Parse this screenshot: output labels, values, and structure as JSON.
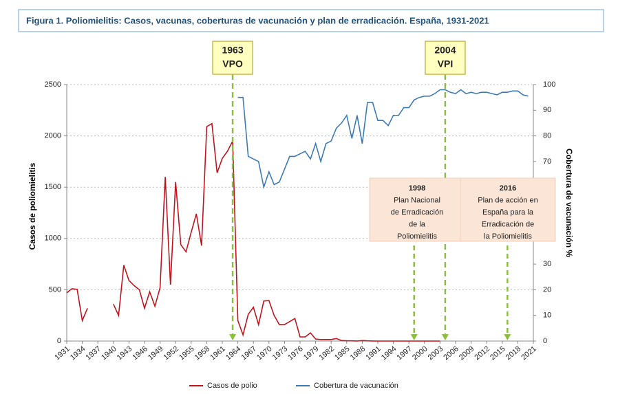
{
  "chart_data": {
    "type": "line",
    "title": "Figura 1. Poliomielitis: Casos, vacunas, coberturas de vacunación y plan de erradicación. España, 1931-2021",
    "y_label": "Casos de poliomielitis",
    "y2_label": "Cobertura de vacunación %",
    "x": [
      1931,
      1932,
      1933,
      1934,
      1935,
      1936,
      1937,
      1938,
      1939,
      1940,
      1941,
      1942,
      1943,
      1944,
      1945,
      1946,
      1947,
      1948,
      1949,
      1950,
      1951,
      1952,
      1953,
      1954,
      1955,
      1956,
      1957,
      1958,
      1959,
      1960,
      1961,
      1962,
      1963,
      1964,
      1965,
      1966,
      1967,
      1968,
      1969,
      1970,
      1971,
      1972,
      1973,
      1974,
      1975,
      1976,
      1977,
      1978,
      1979,
      1980,
      1981,
      1982,
      1983,
      1984,
      1985,
      1986,
      1987,
      1988,
      1989,
      1990,
      1991,
      1992,
      1993,
      1994,
      1995,
      1996,
      1997,
      1998,
      1999,
      2000,
      2001,
      2002,
      2003,
      2004,
      2005,
      2006,
      2007,
      2008,
      2009,
      2010,
      2011,
      2012,
      2013,
      2014,
      2015,
      2016,
      2017,
      2018,
      2019,
      2020,
      2021
    ],
    "xlim": [
      1931,
      2021
    ],
    "xticks": [
      1931,
      1934,
      1937,
      1940,
      1943,
      1946,
      1949,
      1952,
      1955,
      1958,
      1961,
      1964,
      1967,
      1970,
      1973,
      1976,
      1979,
      1982,
      1985,
      1988,
      1991,
      1994,
      1997,
      2000,
      2003,
      2006,
      2009,
      2012,
      2015,
      2018,
      2021
    ],
    "ylim": [
      0,
      2500
    ],
    "yticks": [
      0,
      500,
      1000,
      1500,
      2000,
      2500
    ],
    "y2lim": [
      0,
      100
    ],
    "y2ticks": [
      0,
      10,
      20,
      30,
      40,
      50,
      60,
      70,
      80,
      90,
      100
    ],
    "grid": true,
    "series": [
      {
        "name": "Casos de polio",
        "color": "#c0141c",
        "values": [
          470,
          510,
          505,
          200,
          320,
          null,
          null,
          null,
          null,
          360,
          250,
          740,
          590,
          540,
          500,
          320,
          480,
          340,
          520,
          1600,
          550,
          1550,
          940,
          870,
          1060,
          1240,
          930,
          2090,
          2120,
          1640,
          1780,
          1850,
          1950,
          200,
          60,
          260,
          330,
          160,
          390,
          395,
          250,
          160,
          160,
          190,
          220,
          40,
          40,
          80,
          20,
          15,
          15,
          15,
          25,
          5,
          3,
          2,
          1,
          5,
          2,
          1,
          0,
          0,
          0,
          0,
          0,
          0,
          0,
          0,
          0,
          0,
          0,
          0,
          0,
          null,
          null,
          null,
          null,
          null,
          null,
          null,
          null,
          null,
          null,
          null,
          null,
          null,
          null,
          null,
          null,
          null,
          null
        ]
      },
      {
        "name": "Cobertura de vacunación",
        "color": "#3d7ab5",
        "axis": "y2",
        "values": [
          null,
          null,
          null,
          null,
          null,
          null,
          null,
          null,
          null,
          null,
          null,
          null,
          null,
          null,
          null,
          null,
          null,
          null,
          null,
          null,
          null,
          null,
          null,
          null,
          null,
          null,
          null,
          null,
          null,
          null,
          null,
          null,
          null,
          95,
          95,
          72,
          71,
          70,
          60,
          66,
          61,
          62,
          67,
          72,
          72,
          73,
          74,
          71,
          77,
          70,
          77,
          78,
          83,
          85,
          88,
          79,
          88,
          77,
          93,
          93,
          86,
          86,
          84,
          88,
          88,
          91,
          91,
          94,
          95,
          95.5,
          95.5,
          96.5,
          98,
          98,
          97,
          96.5,
          98,
          96.5,
          97,
          96.5,
          97,
          97,
          96.5,
          96,
          97,
          97,
          97.5,
          97.5,
          96,
          95.5,
          null
        ]
      }
    ],
    "annotations": [
      {
        "x": 1963,
        "style": "vaccine",
        "lines": [
          "1963",
          "VPO"
        ]
      },
      {
        "x": 2004,
        "style": "vaccine",
        "lines": [
          "2004",
          "VPI"
        ]
      },
      {
        "x": 1998,
        "style": "plan",
        "lines": [
          "1998",
          "Plan Nacional",
          "de Erradicación",
          "de la",
          "Poliomielitis"
        ]
      },
      {
        "x": 2016,
        "style": "plan",
        "lines": [
          "2016",
          "Plan de acción en",
          "España para la",
          "Erradicación de",
          "la Poliomielitis"
        ]
      }
    ]
  }
}
